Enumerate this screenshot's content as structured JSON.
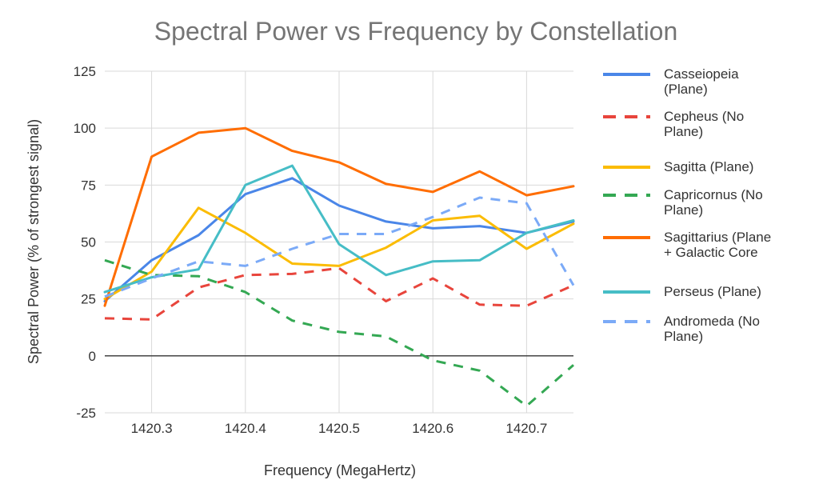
{
  "chart_data": {
    "type": "line",
    "title": "Spectral Power vs Frequency by Constellation",
    "xlabel": "Frequency (MegaHertz)",
    "ylabel": "Spectral Power (% of strongest signal)",
    "x": [
      1420.25,
      1420.3,
      1420.35,
      1420.4,
      1420.45,
      1420.5,
      1420.55,
      1420.6,
      1420.65,
      1420.7,
      1420.75
    ],
    "xlim": [
      1420.25,
      1420.75
    ],
    "ylim": [
      -25,
      125
    ],
    "x_ticks": [
      "1420.3",
      "1420.4",
      "1420.5",
      "1420.6",
      "1420.7"
    ],
    "x_tick_values": [
      1420.3,
      1420.4,
      1420.5,
      1420.6,
      1420.7
    ],
    "y_ticks": [
      "125",
      "100",
      "75",
      "50",
      "25",
      "0",
      "-25"
    ],
    "y_tick_values": [
      125,
      100,
      75,
      50,
      25,
      0,
      -25
    ],
    "grid": true,
    "legend_position": "right",
    "series": [
      {
        "name": "Casseiopeia (Plane)",
        "legend_lines": [
          "Casseiopeia",
          "(Plane)"
        ],
        "color": "#4a86e8",
        "dash": "solid",
        "values": [
          24,
          42,
          53,
          71,
          78,
          66,
          59,
          56,
          57,
          54,
          59
        ]
      },
      {
        "name": "Cepheus (No Plane)",
        "legend_lines": [
          "Cepheus (No",
          "Plane)"
        ],
        "color": "#e8453c",
        "dash": "dashed",
        "values": [
          16.5,
          16,
          30,
          35.5,
          36,
          38.5,
          24,
          34,
          22.5,
          22,
          31
        ]
      },
      {
        "name": "Sagitta (Plane)",
        "legend_lines": [
          "Sagitta (Plane)"
        ],
        "color": "#fbbc04",
        "dash": "solid",
        "values": [
          25,
          37,
          65,
          54,
          40.5,
          39.5,
          47.5,
          59.5,
          61.5,
          47,
          58
        ]
      },
      {
        "name": "Capricornus (No Plane)",
        "legend_lines": [
          "Capricornus (No",
          "Plane)"
        ],
        "color": "#34a853",
        "dash": "dashed",
        "values": [
          42,
          35.5,
          35,
          28,
          15.5,
          10.5,
          8.5,
          -2,
          -6.5,
          -22,
          -4
        ]
      },
      {
        "name": "Sagittarius  (Plane + Galactic Core",
        "legend_lines": [
          "Sagittarius  (Plane",
          "+ Galactic Core"
        ],
        "color": "#ff6d01",
        "dash": "solid",
        "values": [
          22,
          87.5,
          98,
          100,
          90,
          85,
          75.5,
          72,
          81,
          70.5,
          74.5
        ]
      },
      {
        "name": "Perseus (Plane)",
        "legend_lines": [
          "Perseus (Plane)"
        ],
        "color": "#46bdc6",
        "dash": "solid",
        "values": [
          28,
          34.5,
          38,
          75,
          83.5,
          49,
          35.5,
          41.5,
          42,
          54,
          59.5
        ]
      },
      {
        "name": "Andromeda (No Plane)",
        "legend_lines": [
          "Andromeda (No",
          "Plane)"
        ],
        "color": "#7baaf7",
        "dash": "dashed",
        "values": [
          26,
          34,
          41.5,
          39.5,
          47,
          53.5,
          53.5,
          61,
          69.5,
          67,
          31
        ]
      }
    ]
  }
}
